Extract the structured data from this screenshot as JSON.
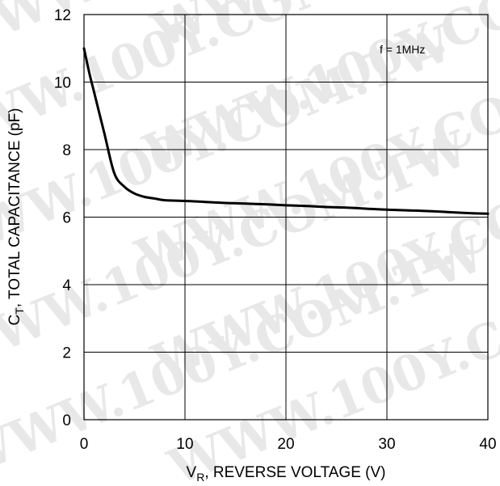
{
  "chart_data": {
    "type": "line",
    "x": [
      0,
      0.5,
      1,
      2,
      3,
      4,
      5,
      6,
      7,
      8,
      10,
      12,
      14,
      16,
      18,
      20,
      22,
      24,
      26,
      28,
      30,
      32,
      34,
      36,
      38,
      40
    ],
    "series": [
      {
        "values": [
          11.0,
          10.3,
          9.7,
          8.5,
          7.3,
          6.9,
          6.7,
          6.6,
          6.55,
          6.5,
          6.48,
          6.45,
          6.42,
          6.4,
          6.38,
          6.35,
          6.33,
          6.3,
          6.28,
          6.25,
          6.22,
          6.2,
          6.18,
          6.15,
          6.12,
          6.1
        ]
      }
    ],
    "xlim": [
      0,
      40
    ],
    "ylim": [
      0,
      12
    ],
    "x_ticks": [
      "0",
      "10",
      "20",
      "30",
      "40"
    ],
    "y_ticks": [
      "0",
      "2",
      "4",
      "6",
      "8",
      "10",
      "12"
    ],
    "xlabel": {
      "main": "V",
      "sub": "R",
      "rest": ", REVERSE VOLTAGE (V)"
    },
    "ylabel": {
      "main": "C",
      "sub": "T",
      "rest": ", TOTAL CAPACITANCE (pF)"
    },
    "annotation": "f = 1MHz",
    "grid": true,
    "colors": {
      "line": "#000000",
      "grid": "#000000",
      "background": "#ffffff"
    }
  },
  "watermark": {
    "text": "WWW.100Y.COM.TW",
    "color": "#e8e8e8"
  }
}
